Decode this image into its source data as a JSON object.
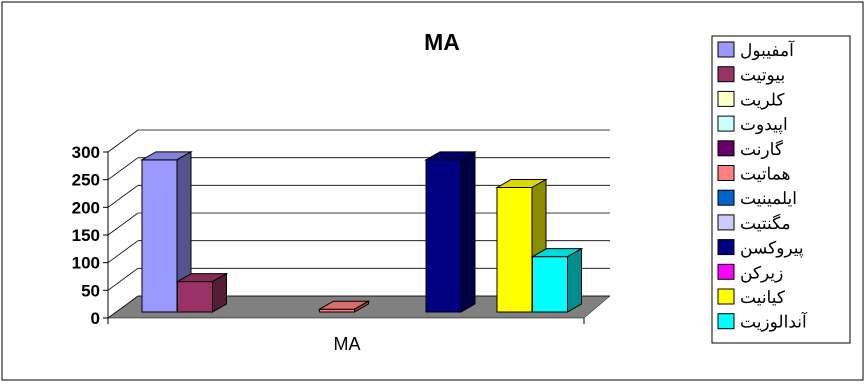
{
  "chart_data": {
    "type": "bar",
    "title": "MA",
    "categories": [
      "MA"
    ],
    "xlabel": "",
    "ylabel": "",
    "ylim": [
      0,
      300
    ],
    "yticks": [
      0,
      50,
      100,
      150,
      200,
      250,
      300
    ],
    "grid": true,
    "legend_position": "right",
    "series": [
      {
        "name": "آمفیبول",
        "values": [
          275
        ],
        "color": "#9999ff"
      },
      {
        "name": "بیوتیت",
        "values": [
          55
        ],
        "color": "#993366"
      },
      {
        "name": "کلریت",
        "values": [
          0
        ],
        "color": "#ffffcc"
      },
      {
        "name": "اپیدوت",
        "values": [
          0
        ],
        "color": "#ccffff"
      },
      {
        "name": "گارنت",
        "values": [
          0
        ],
        "color": "#660066"
      },
      {
        "name": "هماتیت",
        "values": [
          5
        ],
        "color": "#ff8080"
      },
      {
        "name": "ایلمینیت",
        "values": [
          0
        ],
        "color": "#0066cc"
      },
      {
        "name": "مگنتیت",
        "values": [
          0
        ],
        "color": "#ccccff"
      },
      {
        "name": "پیروکسن",
        "values": [
          275
        ],
        "color": "#000080"
      },
      {
        "name": "زیرکن",
        "values": [
          0
        ],
        "color": "#ff00ff"
      },
      {
        "name": "کیانیت",
        "values": [
          225
        ],
        "color": "#ffff00"
      },
      {
        "name": "آندالوزیت",
        "values": [
          100
        ],
        "color": "#00ffff"
      }
    ]
  }
}
